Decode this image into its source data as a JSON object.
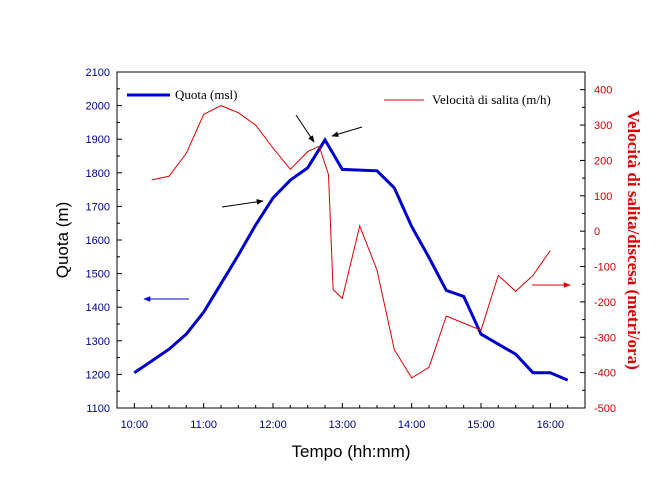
{
  "chart_data": {
    "type": "line",
    "xlabel": "Tempo (hh:mm)",
    "ylabel": "Quota (m)",
    "y2label": "Velocità di salita/discesa (metri/ora)",
    "x_ticks": [
      "10:00",
      "11:00",
      "12:00",
      "13:00",
      "14:00",
      "15:00",
      "16:00"
    ],
    "xlim": [
      "09:45",
      "16:30"
    ],
    "ylim": [
      1100,
      2100
    ],
    "y_ticks": [
      1100,
      1200,
      1300,
      1400,
      1500,
      1600,
      1700,
      1800,
      1900,
      2000,
      2100
    ],
    "y2lim": [
      -500,
      450
    ],
    "y2_ticks": [
      -500,
      -400,
      -300,
      -200,
      -100,
      0,
      100,
      200,
      300,
      400
    ],
    "grid": false,
    "legend_position": "top",
    "series": [
      {
        "name": "Quota (msl)",
        "axis": "left",
        "color": "#0000cc",
        "points": [
          [
            "10:00",
            1205
          ],
          [
            "10:15",
            1240
          ],
          [
            "10:30",
            1275
          ],
          [
            "10:45",
            1320
          ],
          [
            "11:00",
            1385
          ],
          [
            "11:15",
            1470
          ],
          [
            "11:30",
            1555
          ],
          [
            "11:45",
            1645
          ],
          [
            "12:00",
            1725
          ],
          [
            "12:15",
            1778
          ],
          [
            "12:30",
            1815
          ],
          [
            "12:45",
            1898
          ],
          [
            "13:00",
            1810
          ],
          [
            "13:15",
            1808
          ],
          [
            "13:30",
            1806
          ],
          [
            "13:45",
            1755
          ],
          [
            "14:00",
            1640
          ],
          [
            "14:15",
            1548
          ],
          [
            "14:30",
            1450
          ],
          [
            "14:45",
            1432
          ],
          [
            "15:00",
            1320
          ],
          [
            "15:15",
            1290
          ],
          [
            "15:30",
            1260
          ],
          [
            "15:45",
            1205
          ],
          [
            "16:00",
            1205
          ],
          [
            "16:15",
            1183
          ]
        ]
      },
      {
        "name": "Velocità di salita (m/h)",
        "axis": "right",
        "color": "#dd0000",
        "points": [
          [
            "10:15",
            145
          ],
          [
            "10:30",
            155
          ],
          [
            "10:45",
            220
          ],
          [
            "11:00",
            330
          ],
          [
            "11:15",
            355
          ],
          [
            "11:30",
            335
          ],
          [
            "11:45",
            300
          ],
          [
            "12:00",
            235
          ],
          [
            "12:15",
            175
          ],
          [
            "12:30",
            225
          ],
          [
            "12:40",
            240
          ],
          [
            "12:48",
            160
          ],
          [
            "12:52",
            -165
          ],
          [
            "13:00",
            -190
          ],
          [
            "13:15",
            15
          ],
          [
            "13:30",
            -110
          ],
          [
            "13:45",
            -335
          ],
          [
            "14:00",
            -415
          ],
          [
            "14:15",
            -385
          ],
          [
            "14:30",
            -240
          ],
          [
            "14:45",
            -260
          ],
          [
            "15:00",
            -280
          ],
          [
            "15:15",
            -125
          ],
          [
            "15:30",
            -170
          ],
          [
            "15:45",
            -125
          ],
          [
            "16:00",
            -55
          ]
        ]
      }
    ]
  },
  "legend": {
    "quota_label": "Quota (msl)",
    "velocita_label": "Velocità di salita (m/h)"
  },
  "annotations": {
    "arrow_color": "#000000",
    "left_axis_arrow_color": "#0000cc",
    "right_axis_arrow_color": "#dd0000"
  }
}
